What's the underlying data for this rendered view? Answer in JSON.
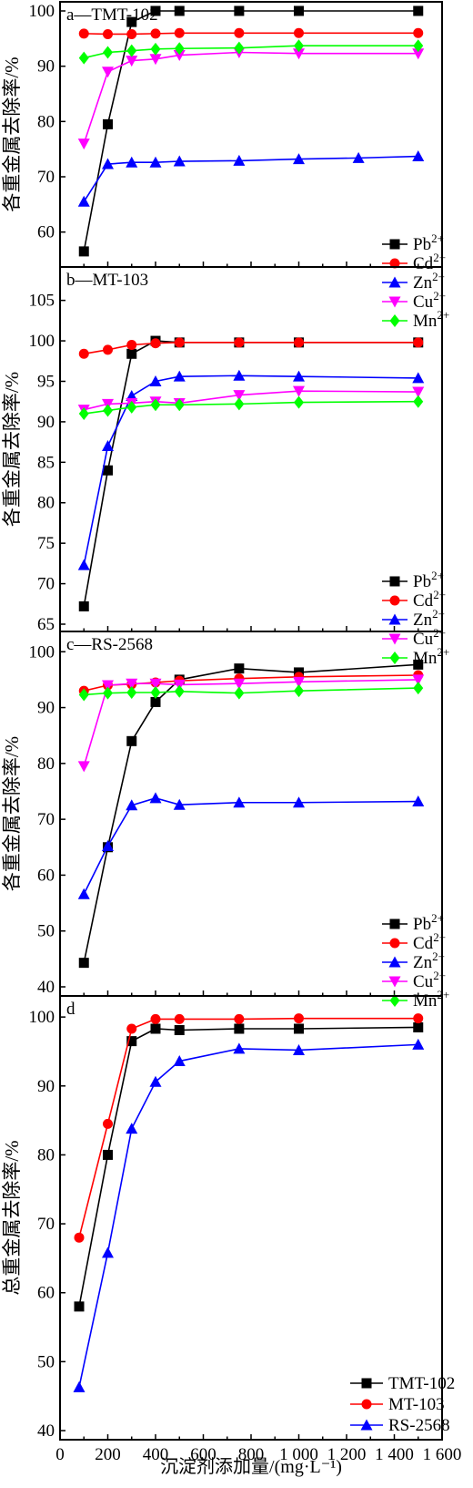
{
  "chart_data": [
    {
      "type": "line",
      "title": "a—TMT-102",
      "ylabel": "各重金属去除率/%",
      "ylim": [
        55,
        100
      ],
      "yticks": [
        60,
        70,
        80,
        90,
        100
      ],
      "xlim": [
        0,
        1600
      ],
      "legend": "right",
      "series": [
        {
          "name": "Pb",
          "color": "#000000",
          "marker": "square",
          "x": [
            100,
            200,
            300,
            400,
            500,
            750,
            1000,
            1500
          ],
          "y": [
            56.5,
            79.5,
            98,
            100,
            100,
            100,
            100,
            100
          ]
        },
        {
          "name": "Cd",
          "color": "#ff0000",
          "marker": "circle",
          "x": [
            100,
            200,
            300,
            400,
            500,
            750,
            1000,
            1500
          ],
          "y": [
            95.9,
            95.8,
            95.8,
            95.9,
            96,
            96,
            96,
            96
          ]
        },
        {
          "name": "Zn",
          "color": "#0000ff",
          "marker": "triangle-up",
          "x": [
            100,
            200,
            300,
            400,
            500,
            750,
            1000,
            1250,
            1500
          ],
          "y": [
            65.5,
            72.3,
            72.6,
            72.6,
            72.8,
            72.9,
            73.2,
            73.4,
            73.7
          ]
        },
        {
          "name": "Cu",
          "color": "#ff00ff",
          "marker": "triangle-down",
          "x": [
            100,
            200,
            300,
            400,
            500,
            750,
            1000,
            1500
          ],
          "y": [
            76,
            89,
            91,
            91.3,
            92,
            92.5,
            92.3,
            92.3
          ]
        },
        {
          "name": "Mn",
          "color": "#00ff00",
          "marker": "diamond",
          "x": [
            100,
            200,
            300,
            400,
            500,
            750,
            1000,
            1500
          ],
          "y": [
            91.5,
            92.5,
            92.8,
            93.1,
            93.2,
            93.3,
            93.7,
            93.7
          ]
        }
      ]
    },
    {
      "type": "line",
      "title": "b—MT-103",
      "ylabel": "各重金属去除率/%",
      "ylim": [
        65,
        108
      ],
      "yticks": [
        65,
        70,
        75,
        80,
        85,
        90,
        95,
        100,
        105
      ],
      "xlim": [
        0,
        1600
      ],
      "legend": "right",
      "series": [
        {
          "name": "Pb",
          "color": "#000000",
          "marker": "square",
          "x": [
            100,
            200,
            300,
            400,
            500,
            750,
            1000,
            1500
          ],
          "y": [
            67.2,
            84,
            98.4,
            100,
            99.8,
            99.8,
            99.8,
            99.8
          ]
        },
        {
          "name": "Cd",
          "color": "#ff0000",
          "marker": "circle",
          "x": [
            100,
            200,
            300,
            400,
            500,
            750,
            1000,
            1500
          ],
          "y": [
            98.4,
            98.9,
            99.5,
            99.7,
            99.8,
            99.8,
            99.8,
            99.8
          ]
        },
        {
          "name": "Zn",
          "color": "#0000ff",
          "marker": "triangle-up",
          "x": [
            100,
            200,
            300,
            400,
            500,
            750,
            1000,
            1500
          ],
          "y": [
            72.3,
            87,
            93.2,
            95,
            95.6,
            95.7,
            95.6,
            95.4
          ]
        },
        {
          "name": "Cu",
          "color": "#ff00ff",
          "marker": "triangle-down",
          "x": [
            100,
            200,
            300,
            400,
            500,
            750,
            1000,
            1500
          ],
          "y": [
            91.5,
            92.2,
            92.3,
            92.5,
            92.3,
            93.3,
            93.8,
            93.7
          ]
        },
        {
          "name": "Mn",
          "color": "#00ff00",
          "marker": "diamond",
          "x": [
            100,
            200,
            300,
            400,
            500,
            750,
            1000,
            1500
          ],
          "y": [
            91,
            91.4,
            91.8,
            92.1,
            92.1,
            92.2,
            92.4,
            92.5
          ]
        }
      ]
    },
    {
      "type": "line",
      "title": "c—RS-2568",
      "ylabel": "各重金属去除率/%",
      "ylim": [
        40,
        102
      ],
      "yticks": [
        40,
        50,
        60,
        70,
        80,
        90,
        100
      ],
      "xlim": [
        0,
        1600
      ],
      "legend": "right",
      "series": [
        {
          "name": "Pb",
          "color": "#000000",
          "marker": "square",
          "x": [
            100,
            200,
            300,
            400,
            500,
            750,
            1000,
            1500
          ],
          "y": [
            44.3,
            65,
            84,
            91,
            95,
            97,
            96.3,
            97.7
          ]
        },
        {
          "name": "Cd",
          "color": "#ff0000",
          "marker": "circle",
          "x": [
            100,
            200,
            300,
            400,
            500,
            750,
            1000,
            1500
          ],
          "y": [
            93,
            94,
            94.2,
            94.5,
            94.8,
            95.2,
            95.5,
            95.8
          ]
        },
        {
          "name": "Zn",
          "color": "#0000ff",
          "marker": "triangle-up",
          "x": [
            100,
            200,
            300,
            400,
            500,
            750,
            1000,
            1500
          ],
          "y": [
            56.6,
            65.2,
            72.5,
            73.8,
            72.6,
            73,
            73,
            73.2
          ]
        },
        {
          "name": "Cu",
          "color": "#ff00ff",
          "marker": "triangle-down",
          "x": [
            100,
            200,
            300,
            400,
            500,
            750,
            1000,
            1500
          ],
          "y": [
            79.5,
            94,
            94.3,
            94.3,
            94.1,
            94.3,
            94.6,
            95
          ]
        },
        {
          "name": "Mn",
          "color": "#00ff00",
          "marker": "diamond",
          "x": [
            100,
            200,
            300,
            400,
            500,
            750,
            1000,
            1500
          ],
          "y": [
            92.3,
            92.6,
            92.7,
            92.7,
            92.9,
            92.6,
            93,
            93.5
          ]
        }
      ]
    },
    {
      "type": "line",
      "title": "d",
      "ylabel": "总重金属去除率/%",
      "xlabel": "沉淀剂添加量/(mg·L⁻¹)",
      "ylim": [
        40,
        102
      ],
      "yticks": [
        40,
        50,
        60,
        70,
        80,
        90,
        100
      ],
      "xlim": [
        0,
        1600
      ],
      "xticks": [
        0,
        200,
        400,
        600,
        800,
        1000,
        1200,
        1400,
        1600
      ],
      "xticklabels": [
        "0",
        "200",
        "400",
        "600",
        "800",
        "1 000",
        "1 200",
        "1 400",
        "1 600"
      ],
      "legend": "bottom-right",
      "series": [
        {
          "name": "TMT-102",
          "color": "#000000",
          "marker": "square",
          "x": [
            80,
            200,
            300,
            400,
            500,
            750,
            1000,
            1500
          ],
          "y": [
            58,
            80,
            96.5,
            98.3,
            98.1,
            98.3,
            98.3,
            98.5
          ]
        },
        {
          "name": "MT-103",
          "color": "#ff0000",
          "marker": "circle",
          "x": [
            80,
            200,
            300,
            400,
            500,
            750,
            1000,
            1500
          ],
          "y": [
            68,
            84.5,
            98.3,
            99.7,
            99.7,
            99.7,
            99.8,
            99.8
          ]
        },
        {
          "name": "RS-2568",
          "color": "#0000ff",
          "marker": "triangle-up",
          "x": [
            80,
            200,
            300,
            400,
            500,
            750,
            1000,
            1500
          ],
          "y": [
            46.3,
            65.8,
            83.8,
            90.6,
            93.6,
            95.4,
            95.2,
            96
          ]
        }
      ]
    }
  ],
  "legend_superscript": "2+"
}
